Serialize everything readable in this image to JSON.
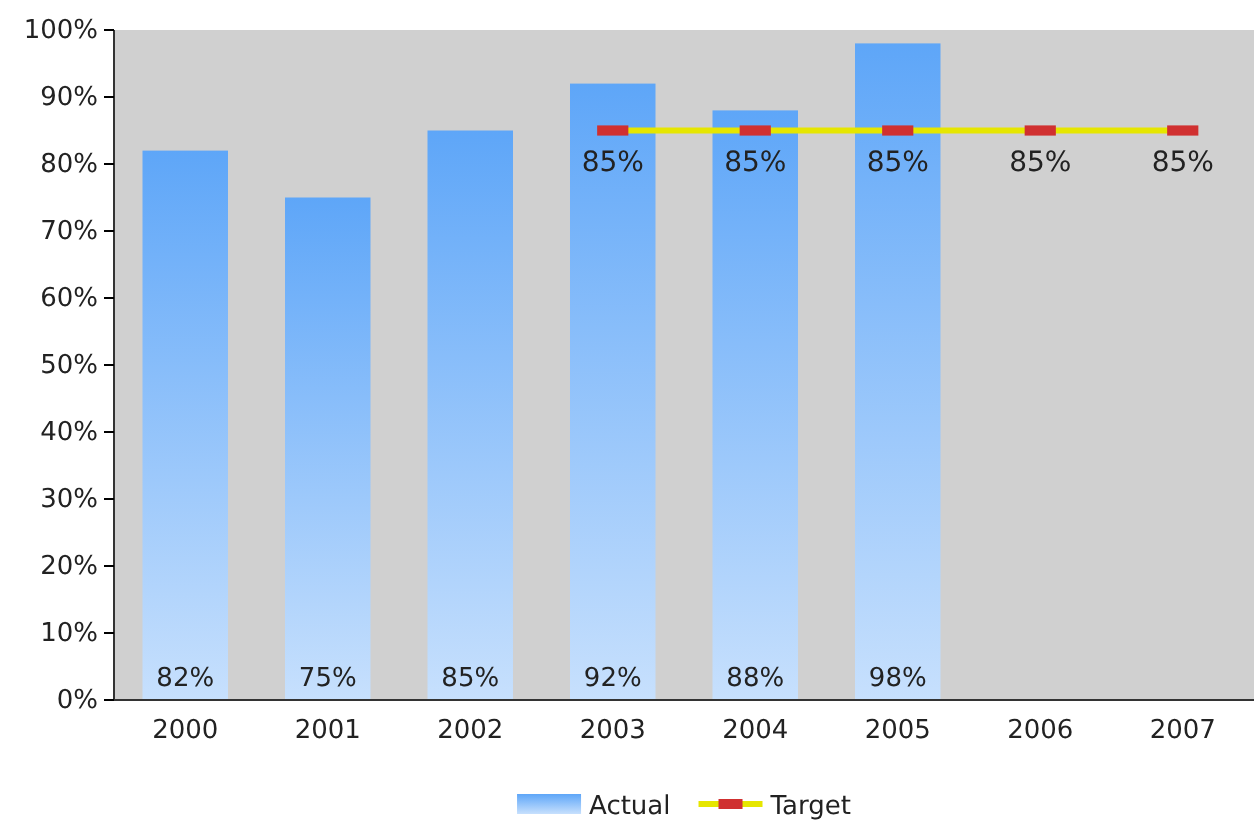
{
  "chart_data": {
    "type": "bar",
    "categories": [
      "2000",
      "2001",
      "2002",
      "2003",
      "2004",
      "2005",
      "2006",
      "2007"
    ],
    "series": [
      {
        "name": "Actual",
        "color": "#5ea6f8",
        "values": [
          82,
          75,
          85,
          92,
          88,
          98,
          null,
          null
        ],
        "value_labels": [
          "82%",
          "75%",
          "85%",
          "92%",
          "88%",
          "98%",
          null,
          null
        ]
      },
      {
        "name": "Target",
        "type": "line",
        "color": "#e6e600",
        "values": [
          null,
          null,
          null,
          85,
          85,
          85,
          85,
          85
        ],
        "value_labels": [
          null,
          null,
          null,
          "85%",
          "85%",
          "85%",
          "85%",
          "85%"
        ]
      }
    ],
    "ylim": [
      0,
      100
    ],
    "yticks": [
      {
        "value": 0,
        "label": "0%"
      },
      {
        "value": 10,
        "label": "10%"
      },
      {
        "value": 20,
        "label": "20%"
      },
      {
        "value": 30,
        "label": "30%"
      },
      {
        "value": 40,
        "label": "40%"
      },
      {
        "value": 50,
        "label": "50%"
      },
      {
        "value": 60,
        "label": "60%"
      },
      {
        "value": 70,
        "label": "70%"
      },
      {
        "value": 80,
        "label": "80%"
      },
      {
        "value": 90,
        "label": "90%"
      },
      {
        "value": 100,
        "label": "100%"
      }
    ],
    "legend": "bottom",
    "marker": "square",
    "line_style": "solid"
  }
}
